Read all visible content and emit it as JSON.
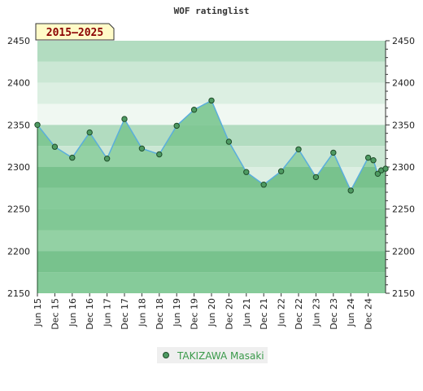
{
  "chart_data": {
    "type": "line",
    "title": "WOF ratinglist",
    "badge": "2015–2025",
    "ylim": [
      2150,
      2450
    ],
    "yticks": [
      2150,
      2200,
      2250,
      2300,
      2350,
      2400,
      2450
    ],
    "xticks": [
      "Jun 15",
      "Dec 15",
      "Jun 16",
      "Dec 16",
      "Jun 17",
      "Dec 17",
      "Jun 18",
      "Dec 18",
      "Jun 19",
      "Dec 19",
      "Jun 20",
      "Dec 20",
      "Jun 21",
      "Dec 21",
      "Jun 22",
      "Dec 22",
      "Jun 23",
      "Dec 23",
      "Jun 24",
      "Dec 24"
    ],
    "x_index_range": [
      0,
      20
    ],
    "legend_position": "bottom-center",
    "colors": {
      "line": "#5aaedc",
      "fill": "#6cbf84",
      "marker": "#4e9a62",
      "marker_edge": "#1f4d2a",
      "badge_bg": "#fffbc8",
      "bands_above": [
        "#b2dcc0",
        "#cbe7d4",
        "#dcefe2",
        "#f0f8f2"
      ],
      "bands_below": [
        "#8dcc9f",
        "#a8dab6",
        "#7ec492",
        "#94d1a6"
      ]
    },
    "series": [
      {
        "name": "TAKIZAWA Masaki",
        "x": [
          0,
          1,
          2,
          3,
          4,
          5,
          6,
          7,
          8,
          9,
          10,
          11,
          12,
          13,
          14,
          15,
          16,
          17,
          18,
          19,
          19.3,
          19.55,
          19.75,
          20
        ],
        "values": [
          2350,
          2324,
          2311,
          2341,
          2310,
          2357,
          2322,
          2315,
          2349,
          2368,
          2379,
          2330,
          2294,
          2279,
          2295,
          2321,
          2288,
          2317,
          2272,
          2311,
          2308,
          2292,
          2296,
          2298
        ]
      }
    ]
  }
}
